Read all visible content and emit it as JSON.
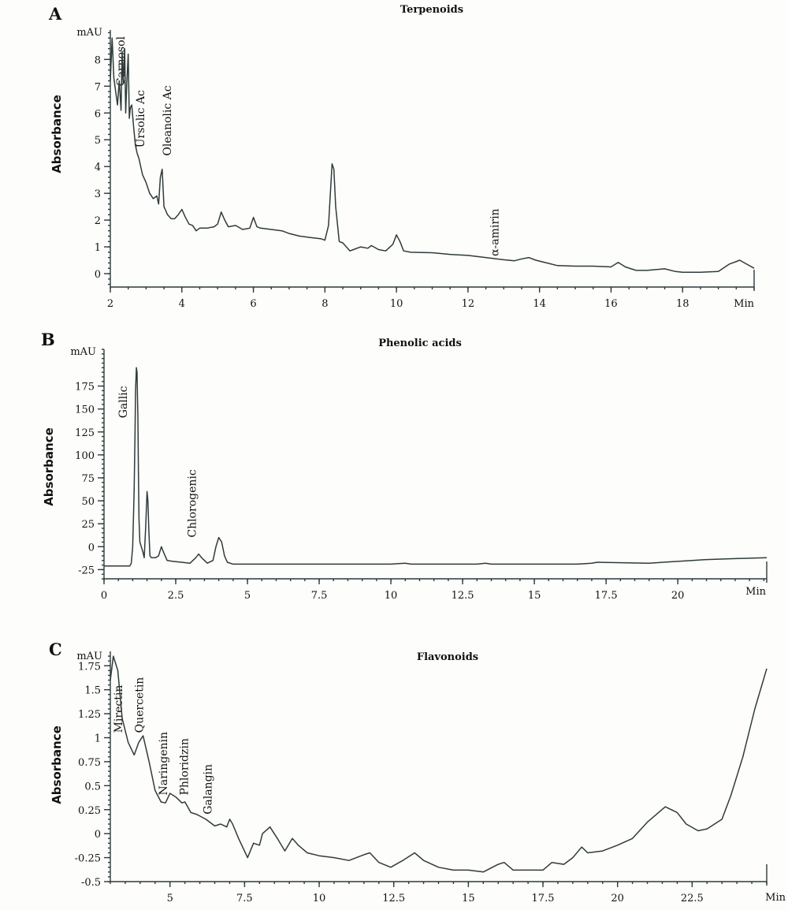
{
  "chart_data": [
    {
      "panel": "A",
      "type": "line",
      "title": "Terpenoids",
      "ylabel": "Absorbance",
      "yunit": "mAU",
      "xunit": "Min",
      "xlim": [
        2,
        20
      ],
      "ylim": [
        -0.5,
        9.1
      ],
      "xticks": [
        2,
        4,
        6,
        8,
        10,
        12,
        14,
        16,
        18
      ],
      "yticks": [
        0,
        1,
        2,
        3,
        4,
        5,
        6,
        7,
        8
      ],
      "annotations": [
        {
          "label": "Carnosol",
          "x": 2.4,
          "y": 7.0
        },
        {
          "label": "Ursolic Ac",
          "x": 2.95,
          "y": 4.7
        },
        {
          "label": "Oleanolic Ac",
          "x": 3.7,
          "y": 4.4
        },
        {
          "label": "α-amirin",
          "x": 12.85,
          "y": 0.65
        }
      ],
      "series": [
        {
          "name": "Terpenoids",
          "x": [
            2.0,
            2.05,
            2.1,
            2.15,
            2.2,
            2.25,
            2.3,
            2.33,
            2.36,
            2.4,
            2.43,
            2.46,
            2.5,
            2.53,
            2.56,
            2.6,
            2.65,
            2.7,
            2.75,
            2.8,
            2.9,
            3.0,
            3.1,
            3.2,
            3.3,
            3.35,
            3.4,
            3.45,
            3.5,
            3.6,
            3.7,
            3.8,
            3.9,
            4.0,
            4.1,
            4.2,
            4.3,
            4.4,
            4.5,
            4.7,
            4.9,
            5.0,
            5.1,
            5.2,
            5.3,
            5.5,
            5.7,
            5.9,
            6.0,
            6.1,
            6.2,
            6.5,
            6.8,
            7.0,
            7.3,
            7.6,
            7.9,
            8.0,
            8.1,
            8.2,
            8.25,
            8.3,
            8.4,
            8.5,
            8.6,
            8.7,
            8.8,
            9.0,
            9.2,
            9.3,
            9.5,
            9.7,
            9.9,
            10.0,
            10.1,
            10.2,
            10.4,
            11.0,
            11.5,
            12.0,
            12.5,
            13.0,
            13.3,
            13.5,
            13.7,
            13.9,
            14.2,
            14.5,
            15.0,
            15.5,
            16.0,
            16.2,
            16.4,
            16.7,
            17.0,
            17.5,
            17.8,
            18.0,
            18.5,
            19.0,
            19.3,
            19.6,
            19.8,
            20.0
          ],
          "y": [
            7.2,
            8.8,
            7.3,
            6.8,
            6.3,
            7.2,
            6.1,
            8.3,
            7.1,
            8.4,
            6.0,
            7.1,
            8.2,
            5.8,
            6.2,
            6.3,
            5.5,
            4.8,
            4.5,
            4.3,
            3.7,
            3.4,
            3.0,
            2.8,
            2.9,
            2.6,
            3.6,
            3.9,
            2.5,
            2.2,
            2.05,
            2.05,
            2.2,
            2.4,
            2.1,
            1.85,
            1.8,
            1.6,
            1.7,
            1.7,
            1.75,
            1.85,
            2.3,
            2.0,
            1.75,
            1.8,
            1.65,
            1.7,
            2.1,
            1.75,
            1.7,
            1.65,
            1.6,
            1.5,
            1.4,
            1.35,
            1.3,
            1.25,
            1.8,
            4.1,
            3.9,
            2.5,
            1.2,
            1.15,
            1.0,
            0.85,
            0.9,
            1.0,
            0.95,
            1.05,
            0.9,
            0.85,
            1.1,
            1.45,
            1.2,
            0.85,
            0.8,
            0.78,
            0.72,
            0.68,
            0.6,
            0.52,
            0.48,
            0.55,
            0.6,
            0.5,
            0.4,
            0.3,
            0.28,
            0.28,
            0.25,
            0.42,
            0.25,
            0.12,
            0.12,
            0.18,
            0.08,
            0.05,
            0.05,
            0.08,
            0.35,
            0.5,
            0.35,
            0.2
          ]
        }
      ]
    },
    {
      "panel": "B",
      "type": "line",
      "title": "Phenolic acids",
      "ylabel": "Absorbance",
      "yunit": "mAU",
      "xunit": "Min",
      "xlim": [
        0,
        23.1
      ],
      "ylim": [
        -35,
        215
      ],
      "xticks": [
        0,
        2.5,
        5,
        7.5,
        10,
        12.5,
        15,
        17.5,
        20
      ],
      "yticks": [
        -25,
        0,
        25,
        50,
        75,
        100,
        125,
        150,
        175
      ],
      "annotations": [
        {
          "label": "Gallic",
          "x": 0.8,
          "y": 140
        },
        {
          "label": "Chlorogenic",
          "x": 3.2,
          "y": 10
        }
      ],
      "series": [
        {
          "name": "Phenolic acids",
          "x": [
            0,
            0.9,
            0.95,
            1.0,
            1.05,
            1.08,
            1.1,
            1.13,
            1.15,
            1.18,
            1.2,
            1.22,
            1.25,
            1.3,
            1.35,
            1.4,
            1.45,
            1.5,
            1.53,
            1.56,
            1.6,
            1.65,
            1.7,
            1.8,
            1.9,
            2.0,
            2.1,
            2.2,
            2.4,
            2.7,
            3.0,
            3.2,
            3.3,
            3.4,
            3.6,
            3.8,
            3.9,
            4.0,
            4.1,
            4.2,
            4.3,
            4.5,
            6,
            8,
            10,
            10.5,
            10.7,
            12,
            13,
            13.3,
            13.5,
            15,
            16.5,
            17,
            17.2,
            19,
            19.5,
            20,
            20.5,
            21,
            22,
            23.1
          ],
          "y": [
            -21,
            -21,
            -18,
            0,
            60,
            120,
            170,
            195,
            190,
            140,
            80,
            30,
            5,
            0,
            -5,
            -12,
            20,
            60,
            50,
            20,
            -10,
            -12,
            -12,
            -12,
            -10,
            0,
            -8,
            -15,
            -16,
            -17,
            -18,
            -12,
            -8,
            -12,
            -18,
            -15,
            0,
            10,
            5,
            -10,
            -17,
            -19,
            -19,
            -19,
            -19,
            -18,
            -19,
            -19,
            -19,
            -18,
            -19,
            -19,
            -19,
            -18,
            -17,
            -18,
            -17,
            -16,
            -15,
            -14,
            -13,
            -12
          ]
        }
      ]
    },
    {
      "panel": "C",
      "type": "line",
      "title": "Flavonoids",
      "ylabel": "Absorbance",
      "yunit": "mAU",
      "xunit": "Min",
      "xlim": [
        3,
        25
      ],
      "ylim": [
        -0.5,
        1.9
      ],
      "xticks": [
        5,
        7.5,
        10,
        12.5,
        15,
        17.5,
        20,
        22.5
      ],
      "yticks": [
        -0.5,
        -0.25,
        0,
        0.25,
        0.5,
        0.75,
        1,
        1.25,
        1.5,
        1.75
      ],
      "annotations": [
        {
          "label": "Mirectin",
          "x": 3.4,
          "y": 1.05
        },
        {
          "label": "Quercetin",
          "x": 4.1,
          "y": 1.05
        },
        {
          "label": "Naringenin",
          "x": 4.9,
          "y": 0.4
        },
        {
          "label": "Phloridzin",
          "x": 5.6,
          "y": 0.4
        },
        {
          "label": "Galangin",
          "x": 6.4,
          "y": 0.2
        }
      ],
      "series": [
        {
          "name": "Flavonoids",
          "x": [
            3.0,
            3.1,
            3.25,
            3.4,
            3.6,
            3.8,
            3.95,
            4.1,
            4.3,
            4.5,
            4.7,
            4.85,
            5.0,
            5.2,
            5.4,
            5.5,
            5.7,
            5.9,
            6.2,
            6.5,
            6.7,
            6.9,
            7.0,
            7.1,
            7.3,
            7.6,
            7.8,
            8.0,
            8.1,
            8.35,
            8.6,
            8.85,
            9.1,
            9.3,
            9.6,
            10.0,
            10.5,
            11.0,
            11.5,
            11.7,
            12.0,
            12.4,
            12.8,
            13.2,
            13.5,
            14.0,
            14.5,
            15.0,
            15.5,
            16.0,
            16.2,
            16.5,
            17.0,
            17.5,
            17.8,
            18.2,
            18.5,
            18.8,
            19.0,
            19.5,
            20.0,
            20.5,
            21.0,
            21.6,
            22.0,
            22.3,
            22.7,
            23.0,
            23.5,
            23.8,
            24.2,
            24.6,
            25.0
          ],
          "y": [
            1.6,
            1.85,
            1.7,
            1.2,
            0.95,
            0.82,
            0.95,
            1.02,
            0.75,
            0.45,
            0.33,
            0.32,
            0.42,
            0.38,
            0.32,
            0.33,
            0.22,
            0.2,
            0.15,
            0.08,
            0.1,
            0.07,
            0.15,
            0.1,
            -0.05,
            -0.25,
            -0.1,
            -0.12,
            0.0,
            0.07,
            -0.05,
            -0.18,
            -0.05,
            -0.12,
            -0.2,
            -0.23,
            -0.25,
            -0.28,
            -0.22,
            -0.2,
            -0.3,
            -0.35,
            -0.28,
            -0.2,
            -0.28,
            -0.35,
            -0.38,
            -0.38,
            -0.4,
            -0.32,
            -0.3,
            -0.38,
            -0.38,
            -0.38,
            -0.3,
            -0.32,
            -0.25,
            -0.14,
            -0.2,
            -0.18,
            -0.12,
            -0.05,
            0.12,
            0.28,
            0.22,
            0.1,
            0.03,
            0.05,
            0.15,
            0.4,
            0.8,
            1.3,
            1.72
          ]
        }
      ]
    }
  ]
}
